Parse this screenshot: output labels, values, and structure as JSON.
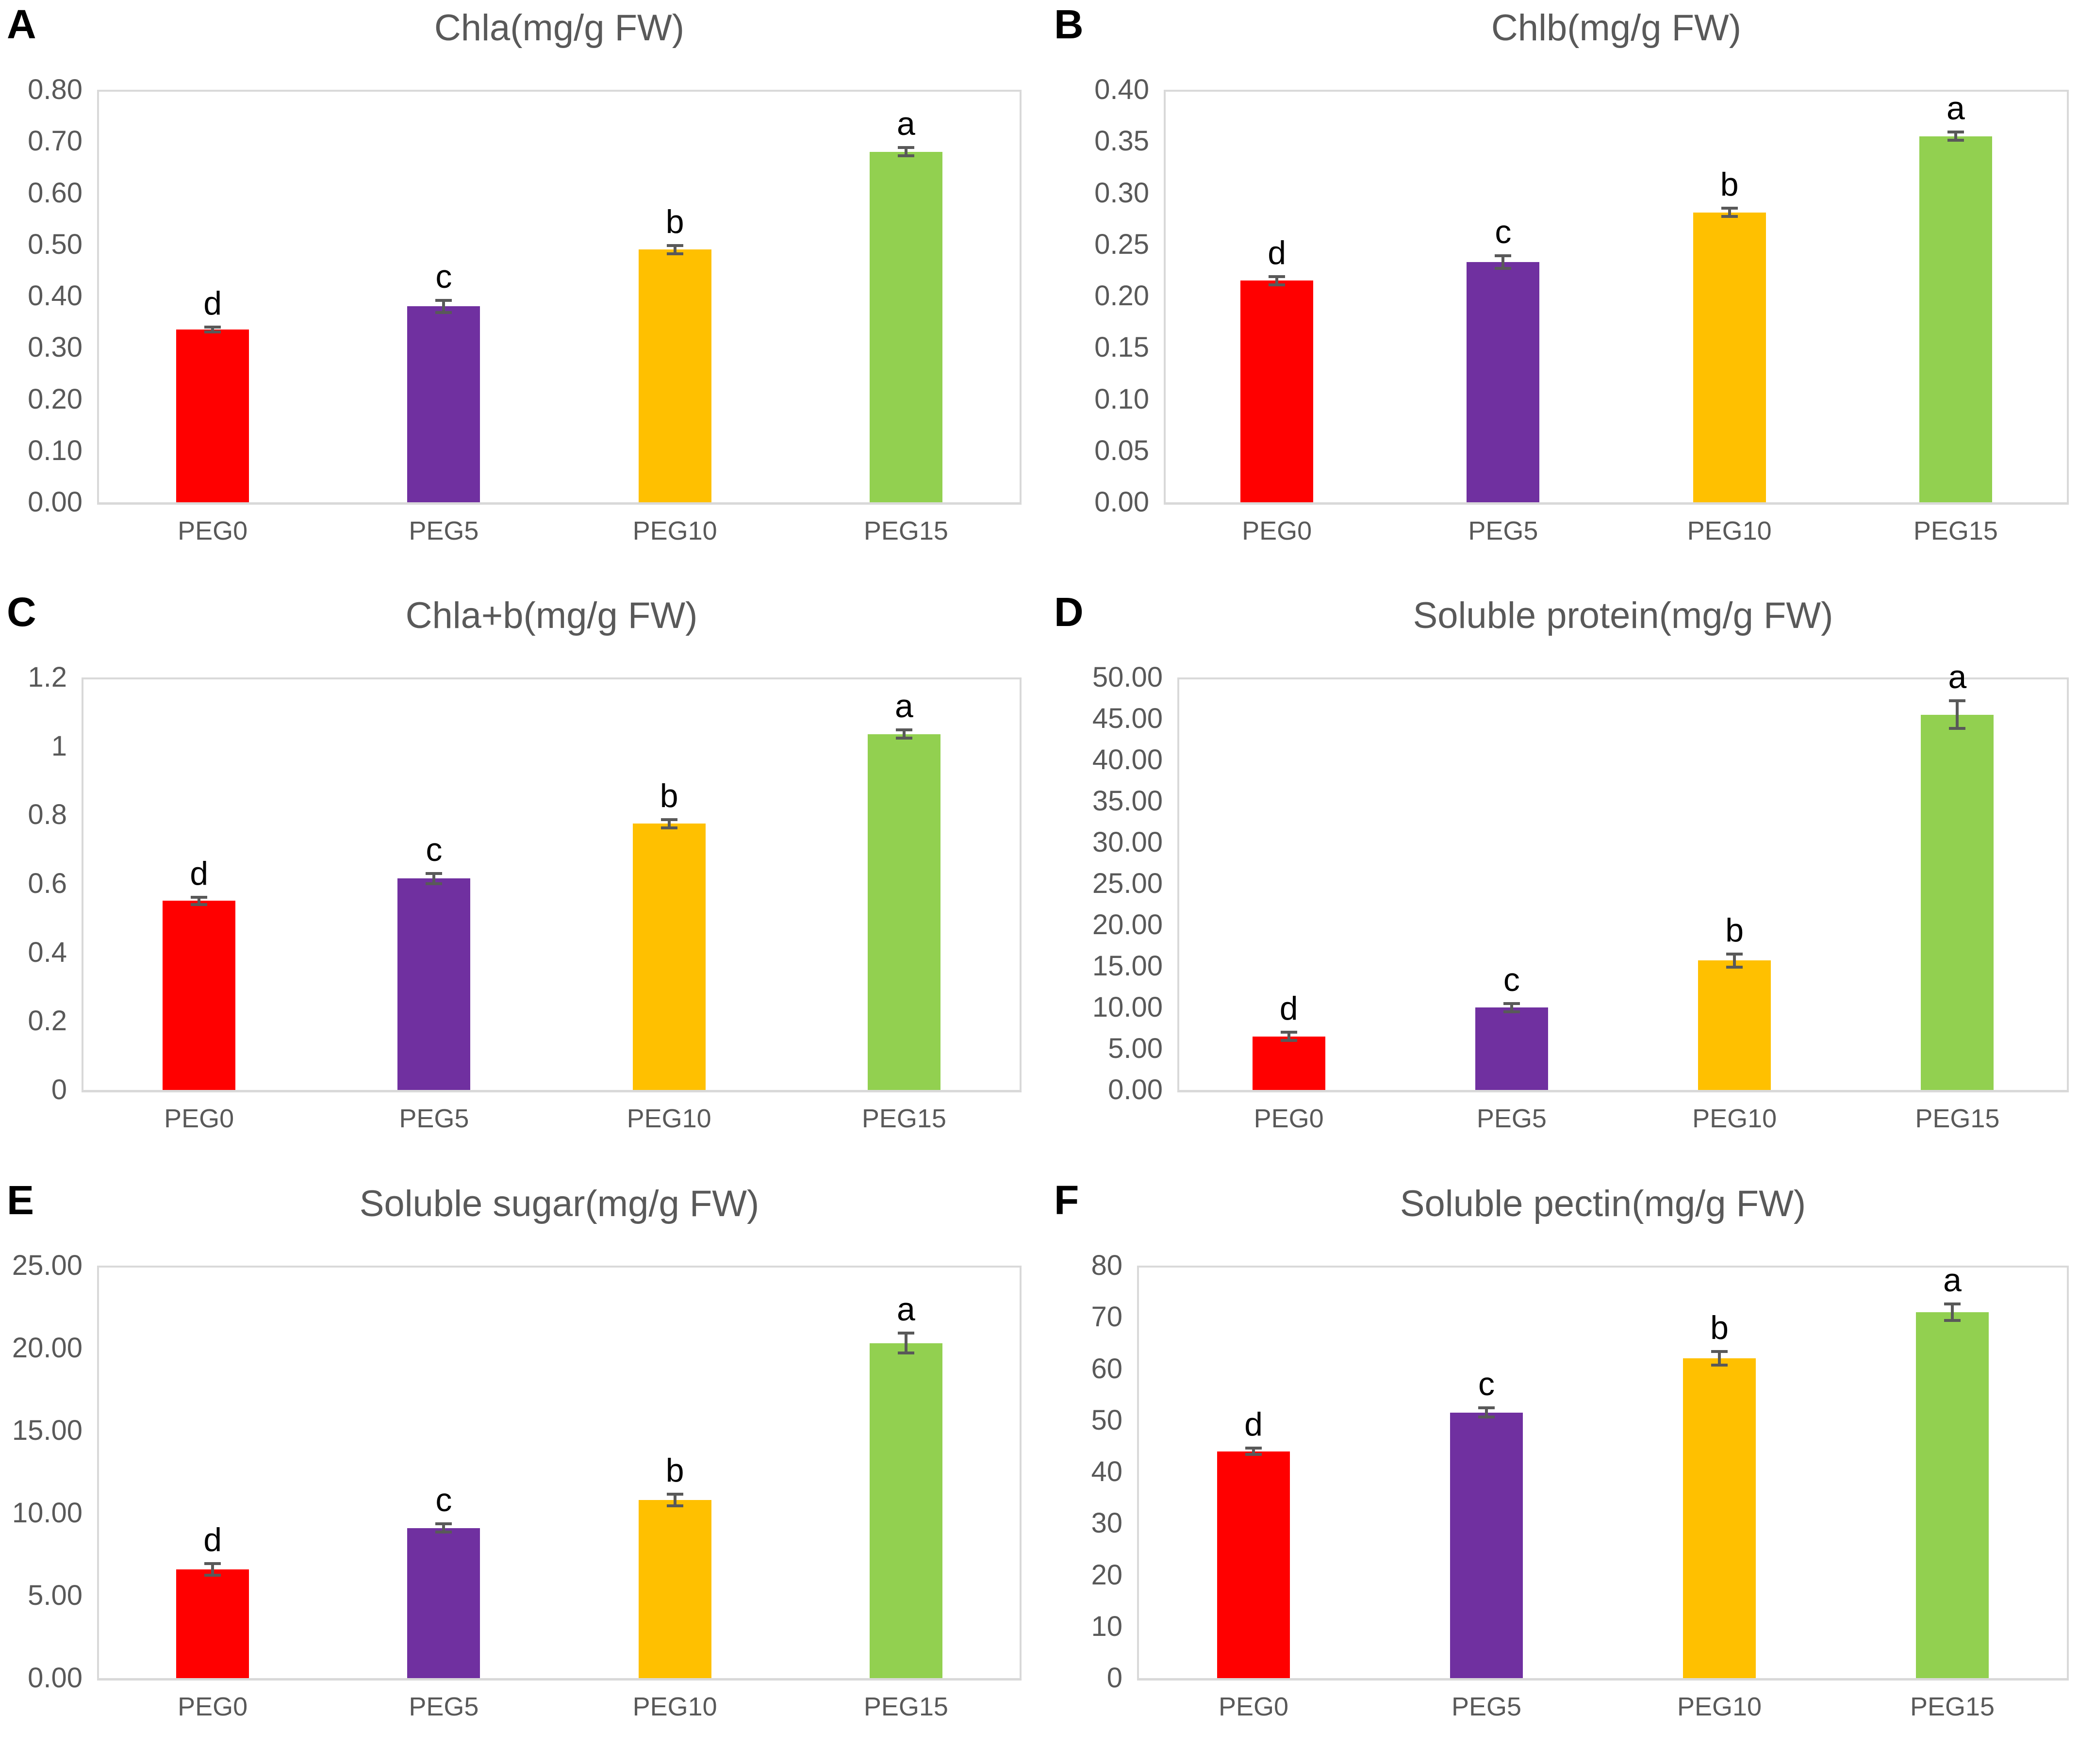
{
  "figure": {
    "categories": [
      "PEG0",
      "PEG5",
      "PEG10",
      "PEG15"
    ],
    "bar_colors": [
      "#ff0000",
      "#7030a0",
      "#ffc000",
      "#92d050"
    ],
    "error_bar_color": "#595959",
    "axis_text_color": "#595959",
    "title_text_color": "#595959",
    "panel_letter_color": "#000000",
    "plot_border_color": "#d9d9d9",
    "significance_letters": [
      "d",
      "c",
      "b",
      "a"
    ]
  },
  "chart_data": [
    {
      "type": "bar",
      "panel_label": "A",
      "title": "Chla(mg/g FW)",
      "categories": [
        "PEG0",
        "PEG5",
        "PEG10",
        "PEG15"
      ],
      "values": [
        0.335,
        0.38,
        0.49,
        0.68
      ],
      "errors": [
        0.005,
        0.012,
        0.008,
        0.008
      ],
      "bar_labels": [
        "d",
        "c",
        "b",
        "a"
      ],
      "xlabel": "",
      "ylabel": "",
      "ylim": [
        0,
        0.8
      ],
      "ytick_labels": [
        "0.00",
        "0.10",
        "0.20",
        "0.30",
        "0.40",
        "0.50",
        "0.60",
        "0.70",
        "0.80"
      ],
      "grid": false,
      "legend": false
    },
    {
      "type": "bar",
      "panel_label": "B",
      "title": "Chlb(mg/g FW)",
      "categories": [
        "PEG0",
        "PEG5",
        "PEG10",
        "PEG15"
      ],
      "values": [
        0.215,
        0.233,
        0.281,
        0.355
      ],
      "errors": [
        0.004,
        0.006,
        0.004,
        0.004
      ],
      "bar_labels": [
        "d",
        "c",
        "b",
        "a"
      ],
      "xlabel": "",
      "ylabel": "",
      "ylim": [
        0,
        0.4
      ],
      "ytick_labels": [
        "0.00",
        "0.05",
        "0.10",
        "0.15",
        "0.20",
        "0.25",
        "0.30",
        "0.35",
        "0.40"
      ],
      "grid": false,
      "legend": false
    },
    {
      "type": "bar",
      "panel_label": "C",
      "title": "Chla+b(mg/g FW)",
      "categories": [
        "PEG0",
        "PEG5",
        "PEG10",
        "PEG15"
      ],
      "values": [
        0.55,
        0.615,
        0.775,
        1.035
      ],
      "errors": [
        0.01,
        0.015,
        0.012,
        0.012
      ],
      "bar_labels": [
        "d",
        "c",
        "b",
        "a"
      ],
      "xlabel": "",
      "ylabel": "",
      "ylim": [
        0,
        1.2
      ],
      "ytick_labels": [
        "0",
        "0.2",
        "0.4",
        "0.6",
        "0.8",
        "1",
        "1.2"
      ],
      "grid": false,
      "legend": false
    },
    {
      "type": "bar",
      "panel_label": "D",
      "title": "Soluble protein(mg/g FW)",
      "categories": [
        "PEG0",
        "PEG5",
        "PEG10",
        "PEG15"
      ],
      "values": [
        6.5,
        10.0,
        15.7,
        45.5
      ],
      "errors": [
        0.5,
        0.5,
        0.8,
        1.7
      ],
      "bar_labels": [
        "d",
        "c",
        "b",
        "a"
      ],
      "xlabel": "",
      "ylabel": "",
      "ylim": [
        0,
        50
      ],
      "ytick_labels": [
        "0.00",
        "5.00",
        "10.00",
        "15.00",
        "20.00",
        "25.00",
        "30.00",
        "35.00",
        "40.00",
        "45.00",
        "50.00"
      ],
      "grid": false,
      "legend": false
    },
    {
      "type": "bar",
      "panel_label": "E",
      "title": "Soluble sugar(mg/g FW)",
      "categories": [
        "PEG0",
        "PEG5",
        "PEG10",
        "PEG15"
      ],
      "values": [
        6.6,
        9.1,
        10.8,
        20.3
      ],
      "errors": [
        0.35,
        0.25,
        0.35,
        0.6
      ],
      "bar_labels": [
        "d",
        "c",
        "b",
        "a"
      ],
      "xlabel": "",
      "ylabel": "",
      "ylim": [
        0,
        25
      ],
      "ytick_labels": [
        "0.00",
        "5.00",
        "10.00",
        "15.00",
        "20.00",
        "25.00"
      ],
      "grid": false,
      "legend": false
    },
    {
      "type": "bar",
      "panel_label": "F",
      "title": "Soluble pectin(mg/g FW)",
      "categories": [
        "PEG0",
        "PEG5",
        "PEG10",
        "PEG15"
      ],
      "values": [
        44,
        51.5,
        62,
        71
      ],
      "errors": [
        0.6,
        0.9,
        1.3,
        1.6
      ],
      "bar_labels": [
        "d",
        "c",
        "b",
        "a"
      ],
      "xlabel": "",
      "ylabel": "",
      "ylim": [
        0,
        80
      ],
      "ytick_labels": [
        "0",
        "10",
        "20",
        "30",
        "40",
        "50",
        "60",
        "70",
        "80"
      ],
      "grid": false,
      "legend": false
    }
  ]
}
